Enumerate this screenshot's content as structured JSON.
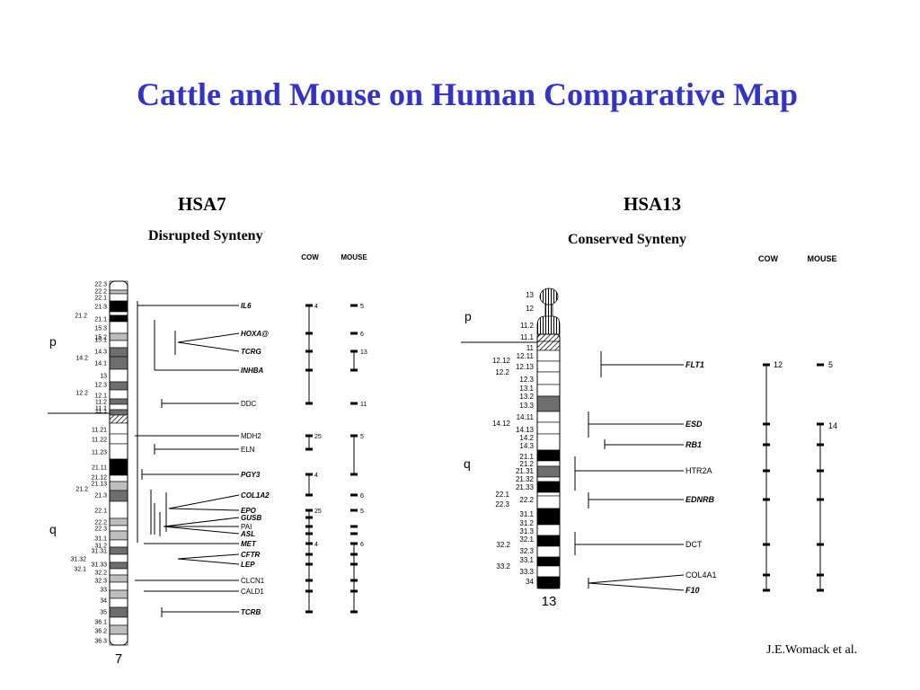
{
  "title": "Cattle and Mouse on Human Comparative Map",
  "credit": "J.E.Womack et al.",
  "hsa7": {
    "heading": "HSA7",
    "subheading": "Disrupted Synteny",
    "col_cow": "COW",
    "col_mouse": "MOUSE",
    "chrom_label": "7",
    "arm_p": "p",
    "arm_q": "q",
    "bands_right": [
      "22.3",
      "22.2",
      "22.1",
      "21.3",
      "21.1",
      "15.3",
      "15.2",
      "15.1",
      "14.3",
      "14.1",
      "13",
      "12.3",
      "12.1",
      "11.2",
      "11.1",
      "11.1",
      "11.21",
      "11.22",
      "11.23",
      "21.11",
      "21.12",
      "21.13",
      "21.3",
      "22.1",
      "22.2",
      "22.3",
      "31.1",
      "31.2",
      "31.31",
      "31.33",
      "32.2",
      "32.3",
      "33",
      "34",
      "35",
      "36.1",
      "36.2",
      "36.3"
    ],
    "bands_left": [
      "21.2",
      "14.2",
      "12.2",
      "21.2",
      "31.32",
      "32.1"
    ],
    "genes": [
      "IL6",
      "HOXA@",
      "TCRG",
      "INHBA",
      "DDC",
      "MDH2",
      "ELN",
      "PGY3",
      "COL1A2",
      "EPO",
      "GUSB",
      "PAI",
      "ASL",
      "MET",
      "CFTR",
      "LEP",
      "CLCN1",
      "CALD1",
      "TCRB"
    ],
    "cow_labels": [
      "4",
      "25",
      "4",
      "25",
      "4"
    ],
    "mouse_labels": [
      "5",
      "6",
      "13",
      "11",
      "5",
      "6",
      "5",
      "6"
    ]
  },
  "hsa13": {
    "heading": "HSA13",
    "subheading": "Conserved Synteny",
    "col_cow": "COW",
    "col_mouse": "MOUSE",
    "chrom_label": "13",
    "arm_p": "p",
    "arm_q": "q",
    "bands_right": [
      "13",
      "12",
      "11.2",
      "11.1",
      "11",
      "12.11",
      "12.13",
      "12.3",
      "13.1",
      "13.2",
      "13.3",
      "14.11",
      "14.13",
      "14.2",
      "14.3",
      "21.1",
      "21.2",
      "21.31",
      "21.32",
      "21.33",
      "22.2",
      "31.1",
      "31.2",
      "31.3",
      "32.1",
      "32.3",
      "33.1",
      "33.3",
      "34"
    ],
    "bands_left": [
      "12.12",
      "12.2",
      "14.12",
      "22.1",
      "22.3",
      "32.2",
      "33.2"
    ],
    "genes": [
      "FLT1",
      "ESD",
      "RB1",
      "HTR2A",
      "EDNRB",
      "DCT",
      "COL4A1",
      "F10"
    ],
    "cow_labels": [
      "12"
    ],
    "mouse_labels": [
      "5",
      "14"
    ]
  }
}
